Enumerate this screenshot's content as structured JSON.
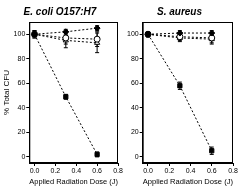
{
  "chart_data": [
    {
      "type": "scatter",
      "title": "E. coli O157:H7",
      "x_label": "Applied Radiation Dose (J)",
      "y_label": "% Total CFU",
      "xlim": [
        -0.05,
        0.8
      ],
      "xticks": [
        {
          "value": 0,
          "label": "0.0"
        },
        {
          "value": 0.2,
          "label": "0.2"
        },
        {
          "value": 0.4,
          "label": "0.4"
        },
        {
          "value": 0.6,
          "label": "0.6"
        },
        {
          "value": 0.8,
          "label": "0.8"
        }
      ],
      "ylim": [
        -5,
        110
      ],
      "yticks": [
        0,
        20,
        40,
        60,
        80,
        100
      ],
      "grid": false,
      "x": [
        0,
        0.3,
        0.6
      ],
      "series": [
        {
          "color": "#000000",
          "marker": "square",
          "line_style": "dotted",
          "values": [
            100,
            49,
            2
          ],
          "errors": [
            2,
            2,
            2
          ]
        },
        {
          "color": "#000000",
          "marker": "diamond",
          "line_style": "dotted",
          "values": [
            100,
            102,
            105
          ],
          "errors": [
            2,
            2,
            2
          ]
        },
        {
          "color": "#000000",
          "marker": "open_circle",
          "line_style": "dotted",
          "values": [
            100,
            97,
            96
          ],
          "errors": [
            3,
            5,
            6
          ]
        },
        {
          "color": "#000000",
          "marker": "open_triangle",
          "line_style": "dotted",
          "values": [
            100,
            95,
            93
          ],
          "errors": [
            3,
            6,
            8
          ]
        }
      ]
    },
    {
      "type": "scatter",
      "title": "S. aureus",
      "x_label": "Applied Radiation Dose (J)",
      "xlim": [
        -0.05,
        0.8
      ],
      "xticks": [
        {
          "value": 0,
          "label": "0.0"
        },
        {
          "value": 0.2,
          "label": "0.2"
        },
        {
          "value": 0.4,
          "label": "0.4"
        },
        {
          "value": 0.6,
          "label": "0.6"
        },
        {
          "value": 0.8,
          "label": "0.8"
        }
      ],
      "ylim": [
        -5,
        110
      ],
      "yticks": [
        0,
        20,
        40,
        60,
        80,
        100
      ],
      "grid": false,
      "x": [
        0,
        0.3,
        0.6
      ],
      "series": [
        {
          "color": "#000000",
          "marker": "square",
          "line_style": "dotted",
          "values": [
            100,
            58,
            5
          ],
          "errors": [
            2,
            3,
            3
          ]
        },
        {
          "color": "#000000",
          "marker": "diamond",
          "line_style": "dotted",
          "values": [
            100,
            101,
            101
          ],
          "errors": [
            2,
            2,
            2
          ]
        },
        {
          "color": "#000000",
          "marker": "open_circle",
          "line_style": "dotted",
          "values": [
            100,
            98,
            97
          ],
          "errors": [
            2,
            3,
            4
          ]
        },
        {
          "color": "#000000",
          "marker": "open_triangle",
          "line_style": "dotted",
          "values": [
            100,
            97,
            96
          ],
          "errors": [
            2,
            3,
            4
          ]
        }
      ]
    }
  ]
}
